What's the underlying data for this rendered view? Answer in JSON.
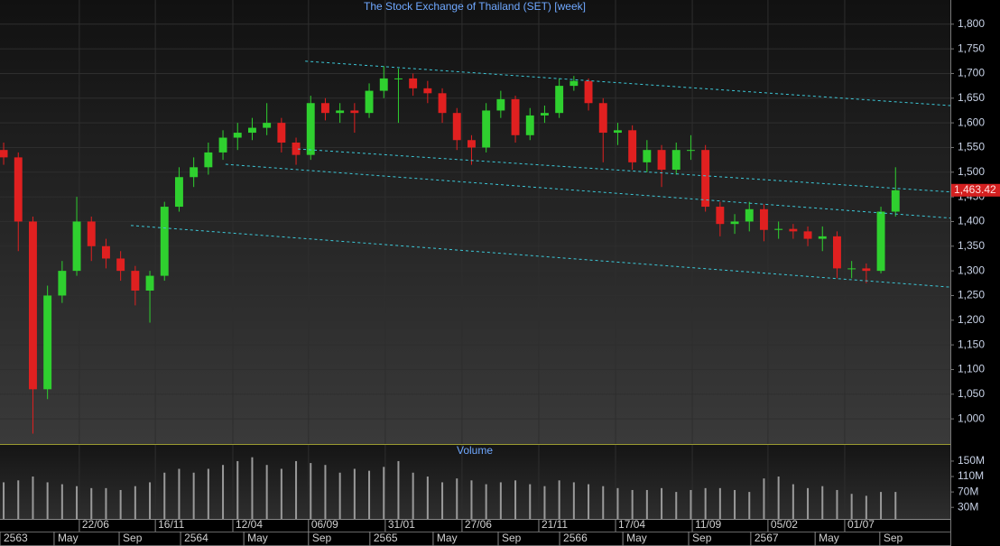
{
  "chart_data": {
    "type": "candlestick",
    "title": "The Stock Exchange of Thailand (SET) [week]",
    "volume_title": "Volume",
    "up_color": "#2fd02f",
    "down_color": "#e02020",
    "volume_color": "#9a9a9a",
    "trend_color": "#3cc8d8",
    "grid": true,
    "xlim": [
      0,
      260
    ],
    "ylim": [
      949,
      1849
    ],
    "yticks": [
      {
        "value": 1000,
        "label": "1,000"
      },
      {
        "value": 1050,
        "label": "1,050"
      },
      {
        "value": 1100,
        "label": "1,100"
      },
      {
        "value": 1150,
        "label": "1,150"
      },
      {
        "value": 1200,
        "label": "1,200"
      },
      {
        "value": 1250,
        "label": "1,250"
      },
      {
        "value": 1300,
        "label": "1,300"
      },
      {
        "value": 1350,
        "label": "1,350"
      },
      {
        "value": 1400,
        "label": "1,400"
      },
      {
        "value": 1450,
        "label": "1,450"
      },
      {
        "value": 1500,
        "label": "1,500"
      },
      {
        "value": 1550,
        "label": "1,550"
      },
      {
        "value": 1600,
        "label": "1,600"
      },
      {
        "value": 1650,
        "label": "1,650"
      },
      {
        "value": 1700,
        "label": "1,700"
      },
      {
        "value": 1750,
        "label": "1,750"
      },
      {
        "value": 1800,
        "label": "1,800"
      }
    ],
    "volume_ylim": [
      0,
      192
    ],
    "volume_yticks": [
      {
        "value": 30,
        "label": "30M"
      },
      {
        "value": 70,
        "label": "70M"
      },
      {
        "value": 110,
        "label": "110M"
      },
      {
        "value": 150,
        "label": "150M"
      }
    ],
    "xticks": [
      {
        "value": 21.7,
        "label": "22/06"
      },
      {
        "value": 42.5,
        "label": "16/11"
      },
      {
        "value": 63.7,
        "label": "12/04"
      },
      {
        "value": 84.4,
        "label": "06/09"
      },
      {
        "value": 105.4,
        "label": "31/01"
      },
      {
        "value": 126.4,
        "label": "27/06"
      },
      {
        "value": 147.4,
        "label": "21/11"
      },
      {
        "value": 168.4,
        "label": "17/04"
      },
      {
        "value": 189.4,
        "label": "11/09"
      },
      {
        "value": 210.1,
        "label": "05/02"
      },
      {
        "value": 231.1,
        "label": "01/07"
      }
    ],
    "xticks2": [
      {
        "value": 0,
        "label": "2563"
      },
      {
        "value": 14.8,
        "label": "May"
      },
      {
        "value": 32.6,
        "label": "Sep"
      },
      {
        "value": 49.4,
        "label": "2564"
      },
      {
        "value": 66.7,
        "label": "May"
      },
      {
        "value": 84.4,
        "label": "Sep"
      },
      {
        "value": 101.2,
        "label": "2565"
      },
      {
        "value": 118.5,
        "label": "May"
      },
      {
        "value": 136.3,
        "label": "Sep"
      },
      {
        "value": 153.1,
        "label": "2566"
      },
      {
        "value": 170.4,
        "label": "May"
      },
      {
        "value": 188.4,
        "label": "Sep"
      },
      {
        "value": 205.4,
        "label": "2567"
      },
      {
        "value": 223,
        "label": "May"
      },
      {
        "value": 240.7,
        "label": "Sep"
      }
    ],
    "x": [
      1,
      5,
      9,
      13,
      17,
      21,
      25,
      29,
      33,
      37,
      41,
      45,
      49,
      53,
      57,
      61,
      65,
      69,
      73,
      77,
      81,
      85,
      89,
      93,
      97,
      101,
      105,
      109,
      113,
      117,
      121,
      125,
      129,
      133,
      137,
      141,
      145,
      149,
      153,
      157,
      161,
      165,
      169,
      173,
      177,
      181,
      185,
      189,
      193,
      197,
      201,
      205,
      209,
      213,
      217,
      221,
      225,
      229,
      233,
      237,
      241,
      245
    ],
    "open": [
      1545,
      1530,
      1400,
      1060,
      1250,
      1300,
      1400,
      1350,
      1325,
      1300,
      1260,
      1290,
      1430,
      1490,
      1510,
      1540,
      1570,
      1580,
      1590,
      1600,
      1560,
      1535,
      1640,
      1620,
      1625,
      1620,
      1665,
      1690,
      1690,
      1670,
      1660,
      1620,
      1565,
      1550,
      1625,
      1648,
      1575,
      1615,
      1620,
      1675,
      1685,
      1640,
      1580,
      1585,
      1520,
      1545,
      1505,
      1545,
      1545,
      1430,
      1395,
      1400,
      1425,
      1383,
      1385,
      1380,
      1365,
      1370,
      1305,
      1305,
      1300,
      1420
    ],
    "high": [
      1560,
      1540,
      1410,
      1270,
      1320,
      1450,
      1410,
      1365,
      1340,
      1310,
      1300,
      1440,
      1510,
      1530,
      1560,
      1585,
      1600,
      1610,
      1640,
      1610,
      1570,
      1655,
      1650,
      1640,
      1640,
      1680,
      1715,
      1710,
      1700,
      1685,
      1670,
      1630,
      1575,
      1640,
      1665,
      1655,
      1630,
      1635,
      1690,
      1695,
      1690,
      1650,
      1600,
      1595,
      1565,
      1555,
      1560,
      1575,
      1555,
      1440,
      1415,
      1440,
      1435,
      1400,
      1395,
      1390,
      1390,
      1380,
      1320,
      1315,
      1430,
      1510
    ],
    "low": [
      1515,
      1340,
      970,
      1040,
      1235,
      1290,
      1320,
      1305,
      1280,
      1230,
      1195,
      1280,
      1420,
      1470,
      1495,
      1525,
      1545,
      1565,
      1575,
      1540,
      1515,
      1525,
      1605,
      1600,
      1580,
      1610,
      1650,
      1600,
      1655,
      1640,
      1600,
      1545,
      1515,
      1540,
      1610,
      1560,
      1565,
      1600,
      1610,
      1665,
      1625,
      1520,
      1555,
      1505,
      1500,
      1470,
      1495,
      1525,
      1420,
      1370,
      1375,
      1380,
      1360,
      1365,
      1365,
      1350,
      1340,
      1285,
      1285,
      1275,
      1295,
      1410
    ],
    "close": [
      1530,
      1400,
      1060,
      1250,
      1300,
      1400,
      1350,
      1325,
      1300,
      1260,
      1290,
      1430,
      1490,
      1510,
      1540,
      1570,
      1580,
      1590,
      1600,
      1560,
      1535,
      1640,
      1620,
      1625,
      1620,
      1665,
      1690,
      1690,
      1670,
      1660,
      1620,
      1565,
      1550,
      1625,
      1648,
      1575,
      1615,
      1620,
      1675,
      1685,
      1640,
      1580,
      1585,
      1520,
      1545,
      1505,
      1545,
      1545,
      1430,
      1395,
      1400,
      1425,
      1383,
      1385,
      1380,
      1365,
      1370,
      1305,
      1305,
      1300,
      1420,
      1463.42
    ],
    "last_price_label": "1,463.42",
    "volume": [
      95,
      100,
      110,
      95,
      90,
      85,
      80,
      80,
      75,
      85,
      95,
      120,
      130,
      120,
      130,
      140,
      150,
      160,
      140,
      130,
      150,
      145,
      140,
      120,
      130,
      125,
      135,
      150,
      120,
      110,
      95,
      105,
      100,
      90,
      95,
      100,
      90,
      85,
      100,
      95,
      90,
      85,
      80,
      75,
      75,
      80,
      70,
      75,
      80,
      80,
      75,
      70,
      105,
      110,
      90,
      80,
      85,
      75,
      65,
      60,
      70,
      70
    ],
    "trendlines": [
      {
        "x": [
          83.5,
          260
        ],
        "y": [
          1725,
          1635
        ]
      },
      {
        "x": [
          81.5,
          260
        ],
        "y": [
          1547,
          1460
        ]
      },
      {
        "x": [
          61.7,
          260
        ],
        "y": [
          1516,
          1407
        ]
      },
      {
        "x": [
          35.8,
          260
        ],
        "y": [
          1392,
          1267
        ]
      }
    ]
  }
}
